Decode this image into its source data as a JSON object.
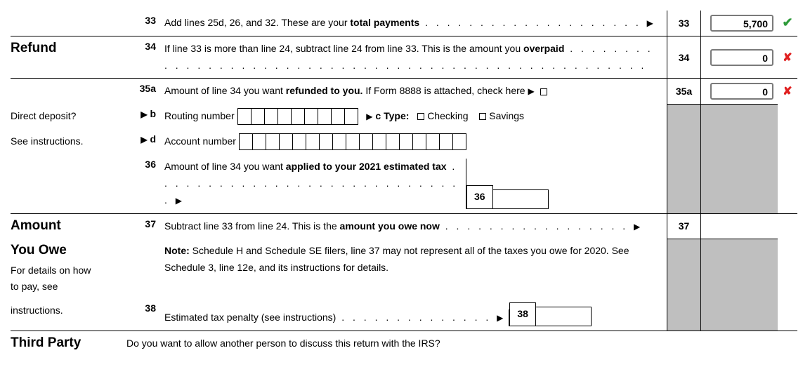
{
  "lines": {
    "l33": {
      "num": "33",
      "text_pre": "Add lines 25d, 26, and 32. These are your ",
      "text_bold": "total payments",
      "leader": " . . . . . . . . . . . . . . . . . . . . ",
      "arrow": "▶",
      "box_num": "33",
      "value": "5,700",
      "mark": "✔",
      "mark_class": "ok"
    },
    "l34": {
      "num": "34",
      "text": "If line 33 is more than line 24, subtract line 24 from line 33. This is the amount you ",
      "text_bold": "overpaid",
      "leader": " . . . . . . . . . . . . . . . . . . . . . . . . . . . . . . . . . . . . . . . . . . . . . . . . . . . . ",
      "box_num": "34",
      "value": "0",
      "mark": "✘",
      "mark_class": "bad"
    },
    "l35a": {
      "num": "35a",
      "text_pre": "Amount of line 34 you want ",
      "text_bold": "refunded to you.",
      "text_post": " If Form 8888 is attached, check here ",
      "arrow": "▶",
      "box_num": "35a",
      "value": "0",
      "mark": "✘",
      "mark_class": "bad"
    },
    "lb": {
      "marker": "▶",
      "num": "b",
      "label": "Routing number",
      "digits": 9,
      "c_label": "c Type:",
      "c_arrow": "▶",
      "opt1": "Checking",
      "opt2": "Savings"
    },
    "ld": {
      "marker": "▶",
      "num": "d",
      "label": "Account number",
      "digits": 17
    },
    "l36": {
      "num": "36",
      "text_pre": "Amount of line 34 you want ",
      "text_bold": "applied to your 2021 estimated tax",
      "leader": " . . . . . . . . . . . . . . . . . . . . . . . . . . . . . ",
      "arrow": "▶",
      "box_num": "36"
    },
    "l37": {
      "num": "37",
      "text_pre": "Subtract line 33 from line 24. This is the ",
      "text_bold": "amount you owe now",
      "leader": " . . . . . . . . . . . . . . . . . ",
      "arrow": "▶",
      "box_num": "37"
    },
    "note": {
      "bold": "Note:",
      "text": " Schedule H and Schedule SE filers, line 37 may not represent all of the taxes you owe for 2020. See Schedule 3, line 12e, and its instructions for details."
    },
    "l38": {
      "num": "38",
      "text": "Estimated tax penalty (see instructions)",
      "leader": " . . . . . . . . . . . . . . ",
      "arrow": "▶",
      "box_num": "38"
    }
  },
  "sections": {
    "refund": "Refund",
    "dd": "Direct deposit?",
    "see": "See instructions.",
    "amount": "Amount",
    "youowe": "You Owe",
    "details1": "For details on how",
    "details2": "to pay, see",
    "details3": "instructions.",
    "third": "Third Party",
    "third_q": "Do you want to allow another person to discuss this return with the IRS?"
  }
}
